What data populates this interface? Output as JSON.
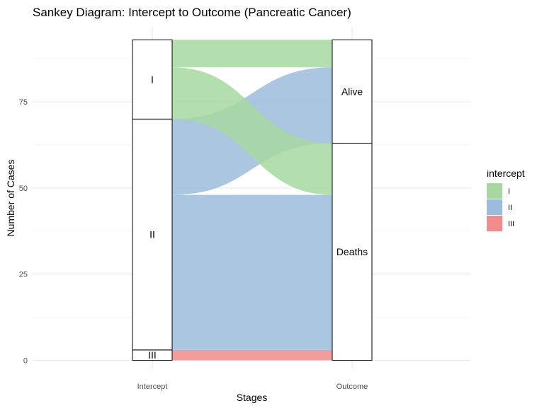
{
  "chart_data": {
    "type": "sankey",
    "title": "Sankey Diagram: Intercept to Outcome (Pancreatic Cancer)",
    "xlabel": "Stages",
    "ylabel": "Number of Cases",
    "ylim": [
      0,
      95
    ],
    "y_ticks": [
      0,
      25,
      50,
      75
    ],
    "axes": [
      "Intercept",
      "Outcome"
    ],
    "stratum_order_bottom_to_top": {
      "Intercept": [
        "III",
        "II",
        "I"
      ],
      "Outcome": [
        "Deaths",
        "Alive"
      ]
    },
    "flows": [
      {
        "intercept": "I",
        "outcome": "Alive",
        "value": 8
      },
      {
        "intercept": "I",
        "outcome": "Deaths",
        "value": 15
      },
      {
        "intercept": "II",
        "outcome": "Alive",
        "value": 22
      },
      {
        "intercept": "II",
        "outcome": "Deaths",
        "value": 45
      },
      {
        "intercept": "III",
        "outcome": "Deaths",
        "value": 3
      }
    ],
    "legend": {
      "title": "intercept",
      "position": "right",
      "items": [
        {
          "label": "I",
          "color": "#a6d8a0"
        },
        {
          "label": "II",
          "color": "#9bbcdc"
        },
        {
          "label": "III",
          "color": "#f28b89"
        }
      ]
    },
    "grid": true
  }
}
